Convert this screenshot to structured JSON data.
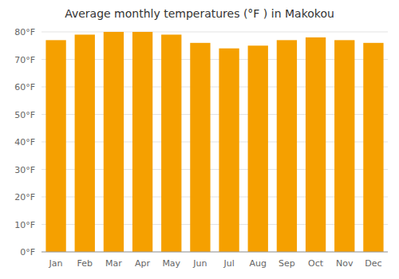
{
  "chart_data": {
    "type": "bar",
    "title": "Average monthly temperatures (°F ) in Makokou",
    "categories": [
      "Jan",
      "Feb",
      "Mar",
      "Apr",
      "May",
      "Jun",
      "Jul",
      "Aug",
      "Sep",
      "Oct",
      "Nov",
      "Dec"
    ],
    "values": [
      77,
      79,
      80,
      80,
      79,
      76,
      74,
      75,
      77,
      78,
      77,
      76
    ],
    "color": "#F5A000",
    "ylim": [
      0,
      80
    ],
    "yticks": [
      {
        "value": 0,
        "label": "0°F"
      },
      {
        "value": 10,
        "label": "10°F"
      },
      {
        "value": 20,
        "label": "20°F"
      },
      {
        "value": 30,
        "label": "30°F"
      },
      {
        "value": 40,
        "label": "40°F"
      },
      {
        "value": 50,
        "label": "50°F"
      },
      {
        "value": 60,
        "label": "60°F"
      },
      {
        "value": 70,
        "label": "70°F"
      },
      {
        "value": 80,
        "label": "80°F"
      }
    ],
    "grid": true
  }
}
